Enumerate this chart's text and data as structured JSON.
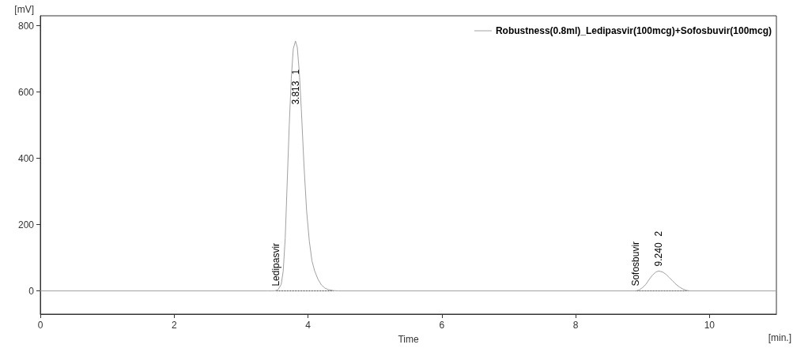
{
  "chart_data": {
    "type": "line",
    "xlabel": "Time",
    "ylabel": "[mV]",
    "xlim": [
      0,
      11
    ],
    "xticks": [
      0,
      2,
      4,
      6,
      8,
      10
    ],
    "ylim": [
      -70,
      830
    ],
    "yticks": [
      0,
      200,
      400,
      600,
      800
    ],
    "grid": false,
    "legend": "top right",
    "marker": "none",
    "series": [
      {
        "name": "Robustness(0.8ml)_Ledipasvir(100mcg)+Sofosbuvir(100mcg)",
        "color": "#a0a0a0",
        "line_style": "solid",
        "x": [
          0,
          3.4,
          3.5,
          3.55,
          3.6,
          3.63,
          3.66,
          3.69,
          3.72,
          3.75,
          3.78,
          3.813,
          3.84,
          3.87,
          3.9,
          3.94,
          3.98,
          4.02,
          4.06,
          4.1,
          4.15,
          4.2,
          4.25,
          4.3,
          4.38,
          4.45,
          8.9,
          8.95,
          9.0,
          9.05,
          9.1,
          9.15,
          9.2,
          9.24,
          9.3,
          9.35,
          9.4,
          9.45,
          9.5,
          9.55,
          9.6,
          9.65,
          9.7,
          11
        ],
        "values": [
          0,
          0,
          0,
          3,
          20,
          60,
          160,
          330,
          500,
          640,
          730,
          754,
          735,
          660,
          550,
          380,
          240,
          150,
          90,
          60,
          35,
          18,
          9,
          4,
          1,
          0,
          0,
          3,
          10,
          20,
          35,
          48,
          57,
          60,
          57,
          50,
          40,
          30,
          20,
          12,
          6,
          2,
          0,
          0
        ]
      },
      {
        "color": "#000000",
        "line_style": "dotted",
        "x": [
          3.52,
          4.38,
          null,
          8.9,
          9.7
        ],
        "values": [
          0,
          0,
          null,
          0,
          0
        ]
      }
    ],
    "annotations": [
      "[min.]",
      "1",
      "3.813",
      {
        "text": "Ledipasvir",
        "x": 3.52,
        "y": 0
      },
      {
        "text": "Sofosbuvir",
        "x": 8.9,
        "y": 0
      },
      {
        "text": "9.240",
        "x": 9.24,
        "y": 60
      },
      "2"
    ]
  }
}
